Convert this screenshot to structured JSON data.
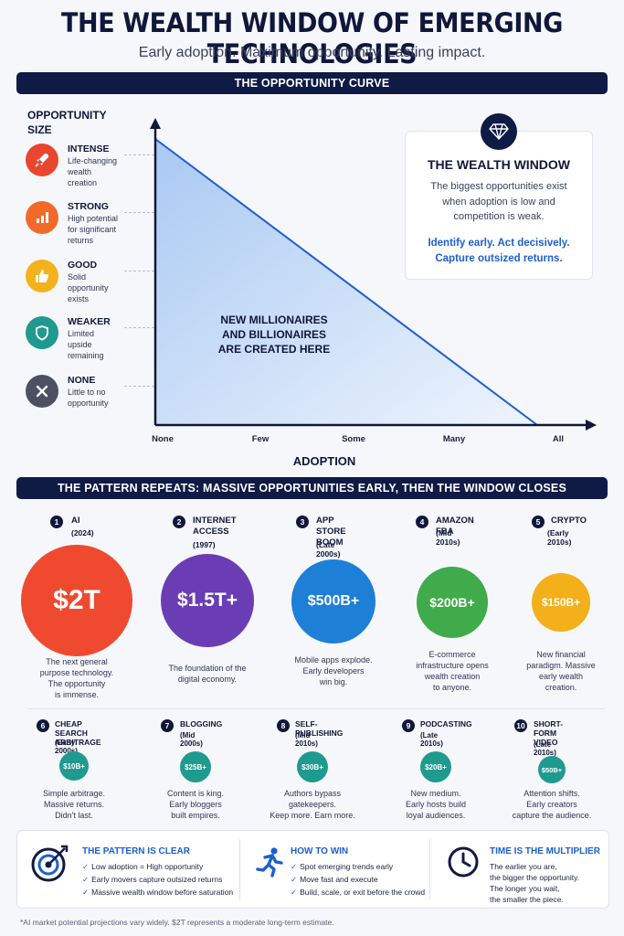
{
  "header": {
    "title": "THE WEALTH WINDOW OF EMERGING TECHNOLOGIES",
    "subtitle": "Early adoption. Maximum opportunity. Lasting impact."
  },
  "curve_section": {
    "bar_title": "THE OPPORTUNITY CURVE",
    "y_axis_title": [
      "OPPORTUNITY",
      "SIZE"
    ],
    "x_axis_title": "ADOPTION",
    "x_ticks": [
      "None",
      "Few",
      "Some",
      "Many",
      "All"
    ],
    "area_label": [
      "NEW MILLIONAIRES",
      "AND BILLIONAIRES",
      "ARE CREATED HERE"
    ],
    "levels": [
      {
        "name": "INTENSE",
        "desc": [
          "Life-changing",
          "wealth",
          "creation"
        ],
        "color": "#e8462f",
        "icon": "rocket-icon"
      },
      {
        "name": "STRONG",
        "desc": [
          "High potential",
          "for significant",
          "returns"
        ],
        "color": "#f26a2a",
        "icon": "bar-chart-icon"
      },
      {
        "name": "GOOD",
        "desc": [
          "Solid",
          "opportunity",
          "exists"
        ],
        "color": "#f3b21c",
        "icon": "thumbs-up-icon"
      },
      {
        "name": "WEAKER",
        "desc": [
          "Limited",
          "upside",
          "remaining"
        ],
        "color": "#1f9a8f",
        "icon": "shield-icon"
      },
      {
        "name": "NONE",
        "desc": [
          "Little to no",
          "opportunity"
        ],
        "color": "#4c5063",
        "icon": "x-icon"
      }
    ],
    "wealth_window": {
      "title": "THE WEALTH WINDOW",
      "text": [
        "The biggest opportunities exist",
        "when adoption is low and",
        "competition is weak."
      ],
      "cta": [
        "Identify early. Act decisively.",
        "Capture outsized returns."
      ]
    }
  },
  "pattern_section": {
    "bar_title": "THE PATTERN REPEATS: MASSIVE OPPORTUNITIES EARLY, THEN THE WINDOW CLOSES",
    "top_row": [
      {
        "num": "1",
        "name": [
          "AI"
        ],
        "year": "(2024)",
        "value": "$2T",
        "color": "#ef4a2f",
        "desc": [
          "The next general",
          "purpose technology.",
          "The opportunity",
          "is immense."
        ]
      },
      {
        "num": "2",
        "name": [
          "INTERNET",
          "ACCESS"
        ],
        "year": "(1997)",
        "value": "$1.5T+",
        "color": "#6a3db5",
        "desc": [
          "The foundation of the",
          "digital economy."
        ]
      },
      {
        "num": "3",
        "name": [
          "APP STORE",
          "BOOM"
        ],
        "year": "(Late 2000s)",
        "value": "$500B+",
        "color": "#1e7fd6",
        "desc": [
          "Mobile apps explode.",
          "Early developers",
          "win big."
        ]
      },
      {
        "num": "4",
        "name": [
          "AMAZON FBA"
        ],
        "year": "(Mid 2010s)",
        "value": "$200B+",
        "color": "#3fab4b",
        "desc": [
          "E-commerce",
          "infrastructure opens",
          "wealth creation",
          "to anyone."
        ]
      },
      {
        "num": "5",
        "name": [
          "CRYPTO"
        ],
        "year": "(Early 2010s)",
        "value": "$150B+",
        "color": "#f4b01a",
        "desc": [
          "New financial",
          "paradigm. Massive",
          "early wealth",
          "creation."
        ]
      }
    ],
    "bottom_row": [
      {
        "num": "6",
        "name": [
          "CHEAP SEARCH",
          "ARBITRAGE"
        ],
        "year": "(Early 2000s)",
        "value": "$10B+",
        "desc": [
          "Simple arbitrage.",
          "Massive returns.",
          "Didn't last."
        ]
      },
      {
        "num": "7",
        "name": [
          "BLOGGING"
        ],
        "year": "(Mid 2000s)",
        "value": "$25B+",
        "desc": [
          "Content is king.",
          "Early bloggers",
          "built empires."
        ]
      },
      {
        "num": "8",
        "name": [
          "SELF-PUBLISHING"
        ],
        "year": "(Mid 2010s)",
        "value": "$30B+",
        "desc": [
          "Authors bypass",
          "gatekeepers.",
          "Keep more. Earn more."
        ]
      },
      {
        "num": "9",
        "name": [
          "PODCASTING"
        ],
        "year": "(Late 2010s)",
        "value": "$20B+",
        "desc": [
          "New medium.",
          "Early hosts build",
          "loyal audiences."
        ]
      },
      {
        "num": "10",
        "name": [
          "SHORT-FORM",
          "VIDEO"
        ],
        "year": "(Late 2010s)",
        "value": "$50B+",
        "desc": [
          "Attention shifts.",
          "Early creators",
          "capture the audience."
        ]
      }
    ],
    "small_color": "#1f9a8f"
  },
  "bottom": {
    "pattern": {
      "title": "THE PATTERN IS CLEAR",
      "items": [
        "Low adoption = High opportunity",
        "Early movers capture outsized returns",
        "Massive wealth window before saturation"
      ]
    },
    "how": {
      "title": "HOW TO WIN",
      "items": [
        "Spot emerging trends early",
        "Move fast and execute",
        "Build, scale, or exit before the crowd"
      ]
    },
    "time": {
      "title": "TIME IS THE MULTIPLIER",
      "text": [
        "The earlier you are,",
        "the bigger the opportunity.",
        "The longer you wait,",
        "the smaller the piece."
      ]
    }
  },
  "footnote": "*AI market potential projections vary widely. $2T represents a moderate long-term estimate."
}
